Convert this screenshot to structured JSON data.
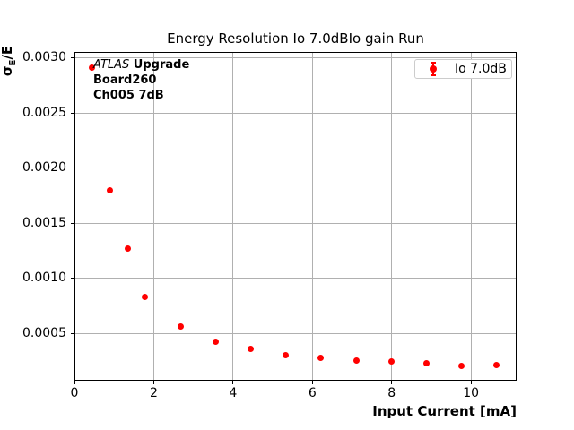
{
  "chart_data": {
    "type": "scatter",
    "title": "Energy Resolution Io 7.0dBIo gain Run",
    "xlabel": "Input Current [mA]",
    "ylabel": "σ_E/E",
    "ylabel_parts": {
      "sigma": "σ",
      "sub": "E",
      "rest": "/E"
    },
    "xlim": [
      0,
      11.15
    ],
    "ylim": [
      7e-05,
      0.003054
    ],
    "xticks": [
      0,
      2,
      4,
      6,
      8,
      10
    ],
    "xtick_labels": [
      "0",
      "2",
      "4",
      "6",
      "8",
      "10"
    ],
    "yticks": [
      0.0005,
      0.001,
      0.0015,
      0.002,
      0.0025,
      0.003
    ],
    "ytick_labels": [
      "0.0005",
      "0.0010",
      "0.0015",
      "0.0020",
      "0.0025",
      "0.0030"
    ],
    "grid": true,
    "legend_position": "upper right",
    "series": [
      {
        "name": "Io 7.0dB",
        "marker": "errorbar-dot",
        "color": "#ff0000",
        "x": [
          0.44,
          0.89,
          1.34,
          1.78,
          2.67,
          3.56,
          4.45,
          5.33,
          6.21,
          7.11,
          8.0,
          8.88,
          9.76,
          10.64
        ],
        "y": [
          0.00291,
          0.0018,
          0.00127,
          0.00083,
          0.00056,
          0.00042,
          0.00036,
          0.0003,
          0.00028,
          0.000253,
          0.000241,
          0.000225,
          0.000203,
          0.000209
        ]
      }
    ]
  },
  "legend": {
    "entries": [
      {
        "label": "Io 7.0dB",
        "color": "#ff0000"
      }
    ]
  },
  "annotation": {
    "atlas": "ATLAS",
    "upgrade": " Upgrade",
    "line2": "Board260",
    "line3": "Ch005 7dB"
  },
  "colors": {
    "marker": "#ff0000",
    "grid": "#b0b0b0",
    "spine": "#000000",
    "legend_border": "#cccccc",
    "background": "#ffffff"
  }
}
